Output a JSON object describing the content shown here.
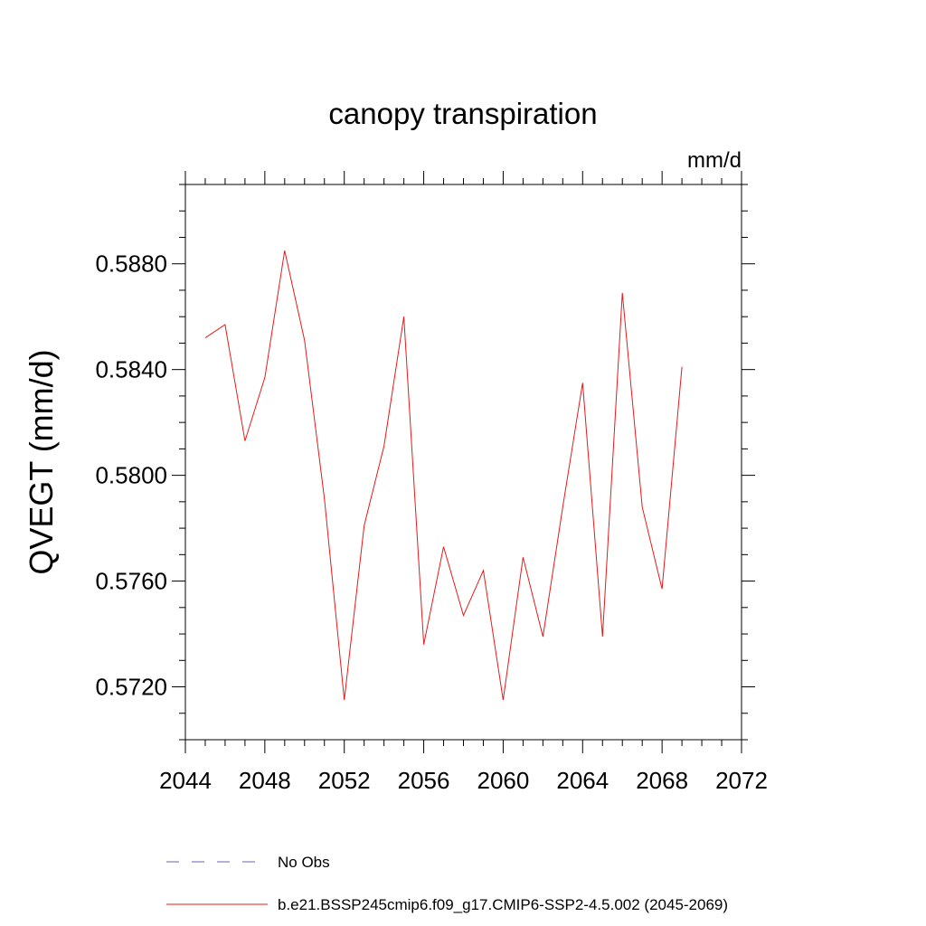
{
  "chart_data": {
    "type": "line",
    "title": "canopy transpiration",
    "units_label": "mm/d",
    "ylabel": "QVEGT  (mm/d)",
    "xlabel": "",
    "xlim": [
      2044,
      2072
    ],
    "ylim": [
      0.57,
      0.591
    ],
    "x_ticks": [
      "2044",
      "2048",
      "2052",
      "2056",
      "2060",
      "2064",
      "2068",
      "2072"
    ],
    "y_ticks": [
      "0.5720",
      "0.5760",
      "0.5800",
      "0.5840",
      "0.5880"
    ],
    "grid": false,
    "legend_position": "bottom",
    "series": [
      {
        "name": "No Obs",
        "color": "#6b5fb5",
        "style": "dashed",
        "x": [],
        "values": []
      },
      {
        "name": "b.e21.BSSP245cmip6.f09_g17.CMIP6-SSP2-4.5.002 (2045-2069)",
        "color": "#e8191a",
        "style": "solid",
        "x": [
          2045,
          2046,
          2047,
          2048,
          2049,
          2050,
          2051,
          2052,
          2053,
          2054,
          2055,
          2056,
          2057,
          2058,
          2059,
          2060,
          2061,
          2062,
          2063,
          2064,
          2065,
          2066,
          2067,
          2068,
          2069
        ],
        "values": [
          0.5852,
          0.5857,
          0.5813,
          0.5837,
          0.5885,
          0.5851,
          0.5791,
          0.5715,
          0.5781,
          0.5811,
          0.586,
          0.5736,
          0.5773,
          0.5747,
          0.5764,
          0.5715,
          0.5769,
          0.5739,
          0.5788,
          0.5835,
          0.5739,
          0.5869,
          0.5788,
          0.5757,
          0.5841
        ]
      }
    ]
  }
}
